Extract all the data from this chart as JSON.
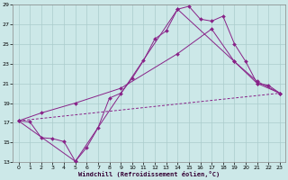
{
  "xlabel": "Windchill (Refroidissement éolien,°C)",
  "background_color": "#cce8e8",
  "grid_color": "#aacccc",
  "line_color": "#882288",
  "xlim": [
    -0.5,
    23.5
  ],
  "ylim": [
    13,
    29
  ],
  "yticks": [
    13,
    15,
    17,
    19,
    21,
    23,
    25,
    27,
    29
  ],
  "xticks": [
    0,
    1,
    2,
    3,
    4,
    5,
    6,
    7,
    8,
    9,
    10,
    11,
    12,
    13,
    14,
    15,
    16,
    17,
    18,
    19,
    20,
    21,
    22,
    23
  ],
  "line1_x": [
    0,
    1,
    2,
    3,
    4,
    5,
    6,
    7,
    8,
    9,
    10,
    11,
    12,
    13,
    14,
    15,
    16,
    17,
    18,
    19,
    20,
    21,
    22,
    23
  ],
  "line1_y": [
    17.2,
    17.1,
    15.5,
    15.4,
    15.1,
    13.1,
    14.5,
    16.5,
    19.5,
    20.0,
    21.5,
    23.3,
    25.5,
    26.3,
    28.5,
    28.8,
    27.5,
    27.3,
    27.8,
    25.0,
    23.2,
    21.0,
    20.8,
    20.0
  ],
  "line2_x": [
    0,
    2,
    5,
    9,
    14,
    17,
    19,
    21,
    23
  ],
  "line2_y": [
    17.2,
    18.0,
    19.0,
    20.5,
    24.0,
    26.5,
    23.2,
    21.2,
    20.0
  ],
  "line3_x": [
    0,
    5,
    14,
    19,
    21,
    23
  ],
  "line3_y": [
    17.2,
    13.1,
    28.5,
    23.2,
    21.0,
    20.0
  ],
  "line4_x": [
    0,
    23
  ],
  "line4_y": [
    17.2,
    20.0
  ]
}
